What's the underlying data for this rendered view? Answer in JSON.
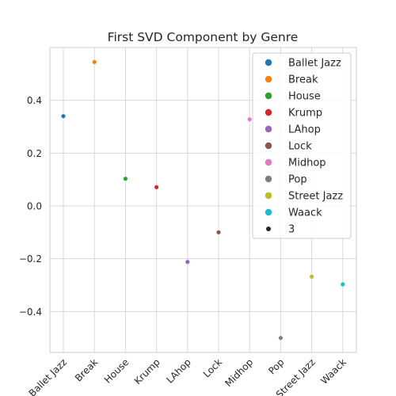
{
  "chart_data": {
    "type": "scatter",
    "title": "First SVD Component by Genre",
    "xlabel": "",
    "ylabel": "",
    "categories": [
      "Ballet Jazz",
      "Break",
      "House",
      "Krump",
      "LAhop",
      "Lock",
      "Midhop",
      "Pop",
      "Street Jazz",
      "Waack"
    ],
    "values": [
      0.34,
      0.545,
      0.103,
      0.071,
      -0.212,
      -0.1,
      0.328,
      -0.5,
      -0.268,
      -0.297
    ],
    "colors": [
      "#1f77b4",
      "#ff7f0e",
      "#2ca02c",
      "#d62728",
      "#9467bd",
      "#8c564b",
      "#e377c2",
      "#7f7f7f",
      "#bcbd22",
      "#17becf"
    ],
    "yticks": [
      -0.4,
      -0.2,
      0.0,
      0.2,
      0.4
    ],
    "ytick_labels": [
      "−0.4",
      "−0.2",
      "0.0",
      "0.2",
      "0.4"
    ],
    "ylim": [
      -0.555,
      0.6
    ],
    "grid": true,
    "legend": {
      "placement": "upper right",
      "entries": [
        "Ballet Jazz",
        "Break",
        "House",
        "Krump",
        "LAhop",
        "Lock",
        "Midhop",
        "Pop",
        "Street Jazz",
        "Waack"
      ],
      "size_entry": "3",
      "size_marker_color": "#262626"
    }
  }
}
